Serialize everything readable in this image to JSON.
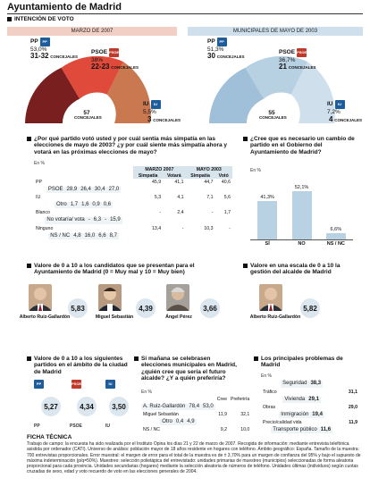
{
  "page": {
    "title": "Ayuntamiento de Madrid",
    "section_title": "INTENCIÓN DE VOTO"
  },
  "colors": {
    "pp": "#1d5d9c",
    "psoe": "#c0392b",
    "iu": "#7a1f1f",
    "pink_band": "#f2cfc4",
    "blue_band": "#cfe0ec",
    "bar": "#b8d2e4"
  },
  "intencion": {
    "left": {
      "band": "MARZO DE 2007",
      "total_label": "57",
      "total_sub": "CONCEJALES",
      "pp": {
        "name": "PP",
        "pct": "53,0%",
        "seats": "31-32",
        "seats_label": "CONCEJALES",
        "logo": "PP"
      },
      "psoe": {
        "name": "PSOE",
        "pct": "38%",
        "seats": "22-23",
        "seats_label": "CONCEJALES",
        "logo": "PSOE"
      },
      "iu": {
        "name": "IU",
        "pct": "5,5%",
        "seats": "3",
        "seats_label": "CONCEJALES",
        "logo": "IU"
      }
    },
    "right": {
      "band": "MUNICIPALES DE MAYO DE 2003",
      "total_label": "55",
      "total_sub": "CONCEJALES",
      "pp": {
        "name": "PP",
        "pct": "51,3%",
        "seats": "30",
        "seats_label": "CONCEJALES",
        "logo": "PP"
      },
      "psoe": {
        "name": "PSOE",
        "pct": "36,7%",
        "seats": "21",
        "seats_label": "CONCEJALES",
        "logo": "PSOE"
      },
      "iu": {
        "name": "IU",
        "pct": "7,2%",
        "seats": "4",
        "seats_label": "CONCEJALES",
        "logo": "IU"
      }
    }
  },
  "voto_table": {
    "heading": "¿Por qué partido votó usted y por cuál sentía más simpatía en las elecciones de mayo de 2003? ¿y por cuál siente más simpatía ahora y votará en las próximas elecciones de mayo?",
    "unit": "En %",
    "group1": "MARZO 2007",
    "group2": "MAYO 2003",
    "cols": [
      "Simpatía",
      "Votará",
      "Simpatía",
      "Votó"
    ],
    "rows": [
      {
        "label": "PP",
        "v": [
          "45,9",
          "41,1",
          "44,7",
          "40,6"
        ]
      },
      {
        "label": "PSOE",
        "v": [
          "28,9",
          "26,4",
          "30,4",
          "27,0"
        ]
      },
      {
        "label": "IU",
        "v": [
          "5,3",
          "4,1",
          "7,1",
          "5,6"
        ]
      },
      {
        "label": "Otro",
        "v": [
          "1,7",
          "1,6",
          "0,9",
          "0,6"
        ]
      },
      {
        "label": "Blanco",
        "v": [
          "-",
          "2,4",
          "-",
          "1,7"
        ]
      },
      {
        "label": "No votaría/ vota",
        "v": [
          "-",
          "6,3",
          "-",
          "15,9"
        ]
      },
      {
        "label": "Ninguno",
        "v": [
          "13,4",
          "-",
          "10,3",
          "-"
        ]
      },
      {
        "label": "NS / NC",
        "v": [
          "4,8",
          "16,0",
          "6,6",
          "8,7"
        ]
      }
    ]
  },
  "cambio": {
    "heading": "¿Cree que es necesario un cambio de partido en el Gobierno del Ayuntamiento de Madrid?",
    "unit": "En %",
    "chart_data": {
      "type": "bar",
      "categories": [
        "SÍ",
        "NO",
        "NS / NC"
      ],
      "values": [
        41.3,
        52.1,
        6.6
      ],
      "value_labels": [
        "41,3%",
        "52,1%",
        "6,6%"
      ],
      "ylim": [
        0,
        60
      ]
    }
  },
  "candidatos": {
    "heading": "Valore de 0 a 10 a los candidatos que se presentan para el Ayuntamiento de Madrid (0 = Muy mal y 10 = Muy bien)",
    "items": [
      {
        "name": "Alberto Ruiz-Gallardón",
        "score": "5,83"
      },
      {
        "name": "Miguel Sebastián",
        "score": "4,39"
      },
      {
        "name": "Ángel Pérez",
        "score": "3,66"
      }
    ]
  },
  "gestion": {
    "heading": "Valore en una escala de 0 a 10 la gestión del alcalde de Madrid",
    "name": "Alberto Ruiz-Gallardón",
    "score": "5,82"
  },
  "partidos": {
    "heading": "Valore de 0 a 10 a los siguientes partidos en el ámbito de la ciudad de Madrid",
    "items": [
      {
        "name": "PP",
        "score": "5,27",
        "logo": "PP"
      },
      {
        "name": "PSOE",
        "score": "4,34",
        "logo": "PSOE"
      },
      {
        "name": "IU",
        "score": "3,50",
        "logo": "IU"
      }
    ]
  },
  "alcalde": {
    "heading": "Si mañana se celebrasen elecciones municipales en Madrid, ¿quién cree que sería el futuro alcalde? ¿Y a quién preferiría?",
    "unit": "En %",
    "cols": [
      "Cree",
      "Preferiría"
    ],
    "rows": [
      {
        "label": "A. Ruiz-Gallardón",
        "v": [
          "78,4",
          "53,0"
        ]
      },
      {
        "label": "Miguel Sebastián",
        "v": [
          "11,9",
          "32,1"
        ]
      },
      {
        "label": "Otro",
        "v": [
          "0,4",
          "4,9"
        ]
      },
      {
        "label": "NS / NC",
        "v": [
          "9,2",
          "10,0"
        ]
      }
    ]
  },
  "problemas": {
    "heading": "Los principales problemas de Madrid",
    "unit": "En %",
    "rows": [
      {
        "label": "Seguridad",
        "v": "38,3"
      },
      {
        "label": "Tráfico",
        "v": "31,1"
      },
      {
        "label": "Vivienda",
        "v": "29,1"
      },
      {
        "label": "Obras",
        "v": "29,0"
      },
      {
        "label": "Inmigración",
        "v": "19,4"
      },
      {
        "label": "Precio/calidad vida",
        "v": "11,9"
      },
      {
        "label": "Transporte público",
        "v": "11,6"
      }
    ]
  },
  "ficha": {
    "title": "FICHA TÉCNICA",
    "text": "Trabajo de campo: la encuesta ha sido realizada por el Instituto Opina los días 21 y 22 de marzo de 2007. Recogida de información: mediante entrevista telefónica asistida por ordenador (CATI). Universo de análisis: población mayor de 18 años residente en hogares con teléfono. Ámbito geográfico: España. Tamaño de la muestra: 700 entrevistas proporcionales. Error muestral: el margen de error para el total de la muestra es de ± 3,70% para un margen de confianza del 95% y bajo el supuesto de máxima indeterminación (p/q=50%). Muestreo: selección polietápica del entrevistado: unidades primarias de muestreo (municipios) seleccionadas de forma aleatoria proporcional para cada provincia. Unidades secundarias (hogares) mediante la selección aleatoria de números de teléfono. Unidades últimas (individuos) según cuotas cruzadas de sexo, edad y voto recuerdo de voto en las elecciones generales de 2004."
  }
}
